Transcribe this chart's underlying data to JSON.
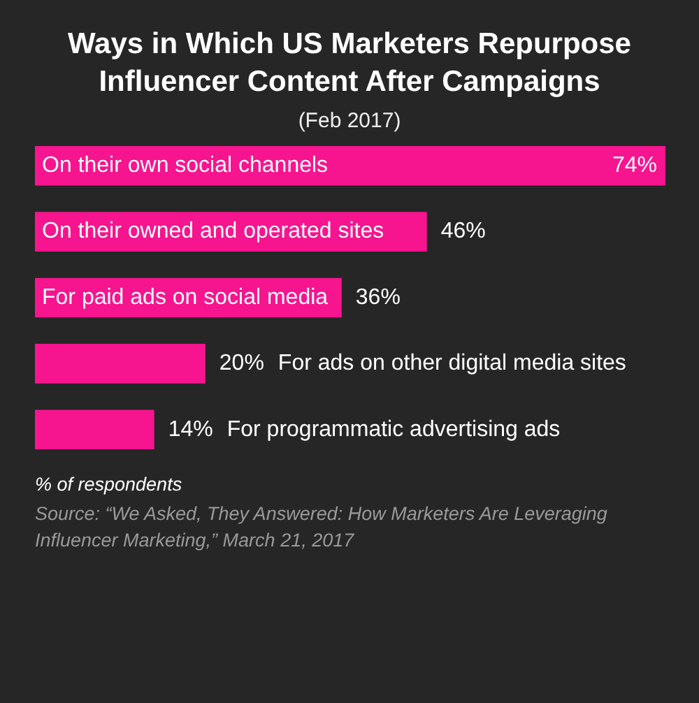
{
  "chart_data": {
    "type": "bar",
    "orientation": "horizontal",
    "title": "Ways in Which US Marketers Repurpose Influencer Content After Campaigns",
    "subtitle": "(Feb 2017)",
    "categories": [
      "On their own social channels",
      "On their owned and operated sites",
      "For paid ads on social media",
      "For ads on other digital media sites",
      "For programmatic advertising ads"
    ],
    "values": [
      74,
      46,
      36,
      20,
      14
    ],
    "value_labels": [
      "74%",
      "46%",
      "36%",
      "20%",
      "14%"
    ],
    "color": "#f7148f",
    "annotations": [
      "% of respondents",
      "Source: “We Asked, They Answered: How Marketers Are Leveraging Influencer Marketing,” March 21, 2017"
    ]
  }
}
